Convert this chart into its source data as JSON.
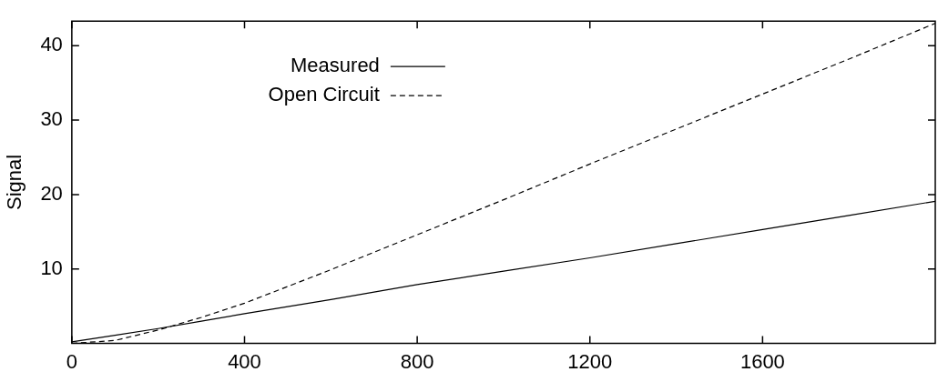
{
  "chart_data": {
    "type": "line",
    "ylabel": "Signal",
    "x": [
      0,
      100,
      200,
      300,
      400,
      600,
      800,
      1000,
      1200,
      1400,
      1600,
      1800,
      2000
    ],
    "series": [
      {
        "name": "Measured",
        "color": "#000000",
        "line_style": "solid",
        "values": [
          0.2,
          1.1,
          2.0,
          3.0,
          4.0,
          5.9,
          7.9,
          9.7,
          11.5,
          13.4,
          15.3,
          17.2,
          19.1
        ]
      },
      {
        "name": "Open Circuit",
        "color": "#000000",
        "line_style": "dashed",
        "values": [
          0,
          0.4,
          1.8,
          3.5,
          5.4,
          9.9,
          14.6,
          19.3,
          24.1,
          28.8,
          33.5,
          38.2,
          43
        ]
      }
    ],
    "xlim": [
      0,
      2000
    ],
    "xticks": [
      0,
      400,
      800,
      1200,
      1600
    ],
    "ylim": [
      0,
      43.3
    ],
    "yticks": [
      10,
      20,
      30,
      40
    ],
    "grid": false,
    "legend": "top left",
    "marker": "none"
  }
}
